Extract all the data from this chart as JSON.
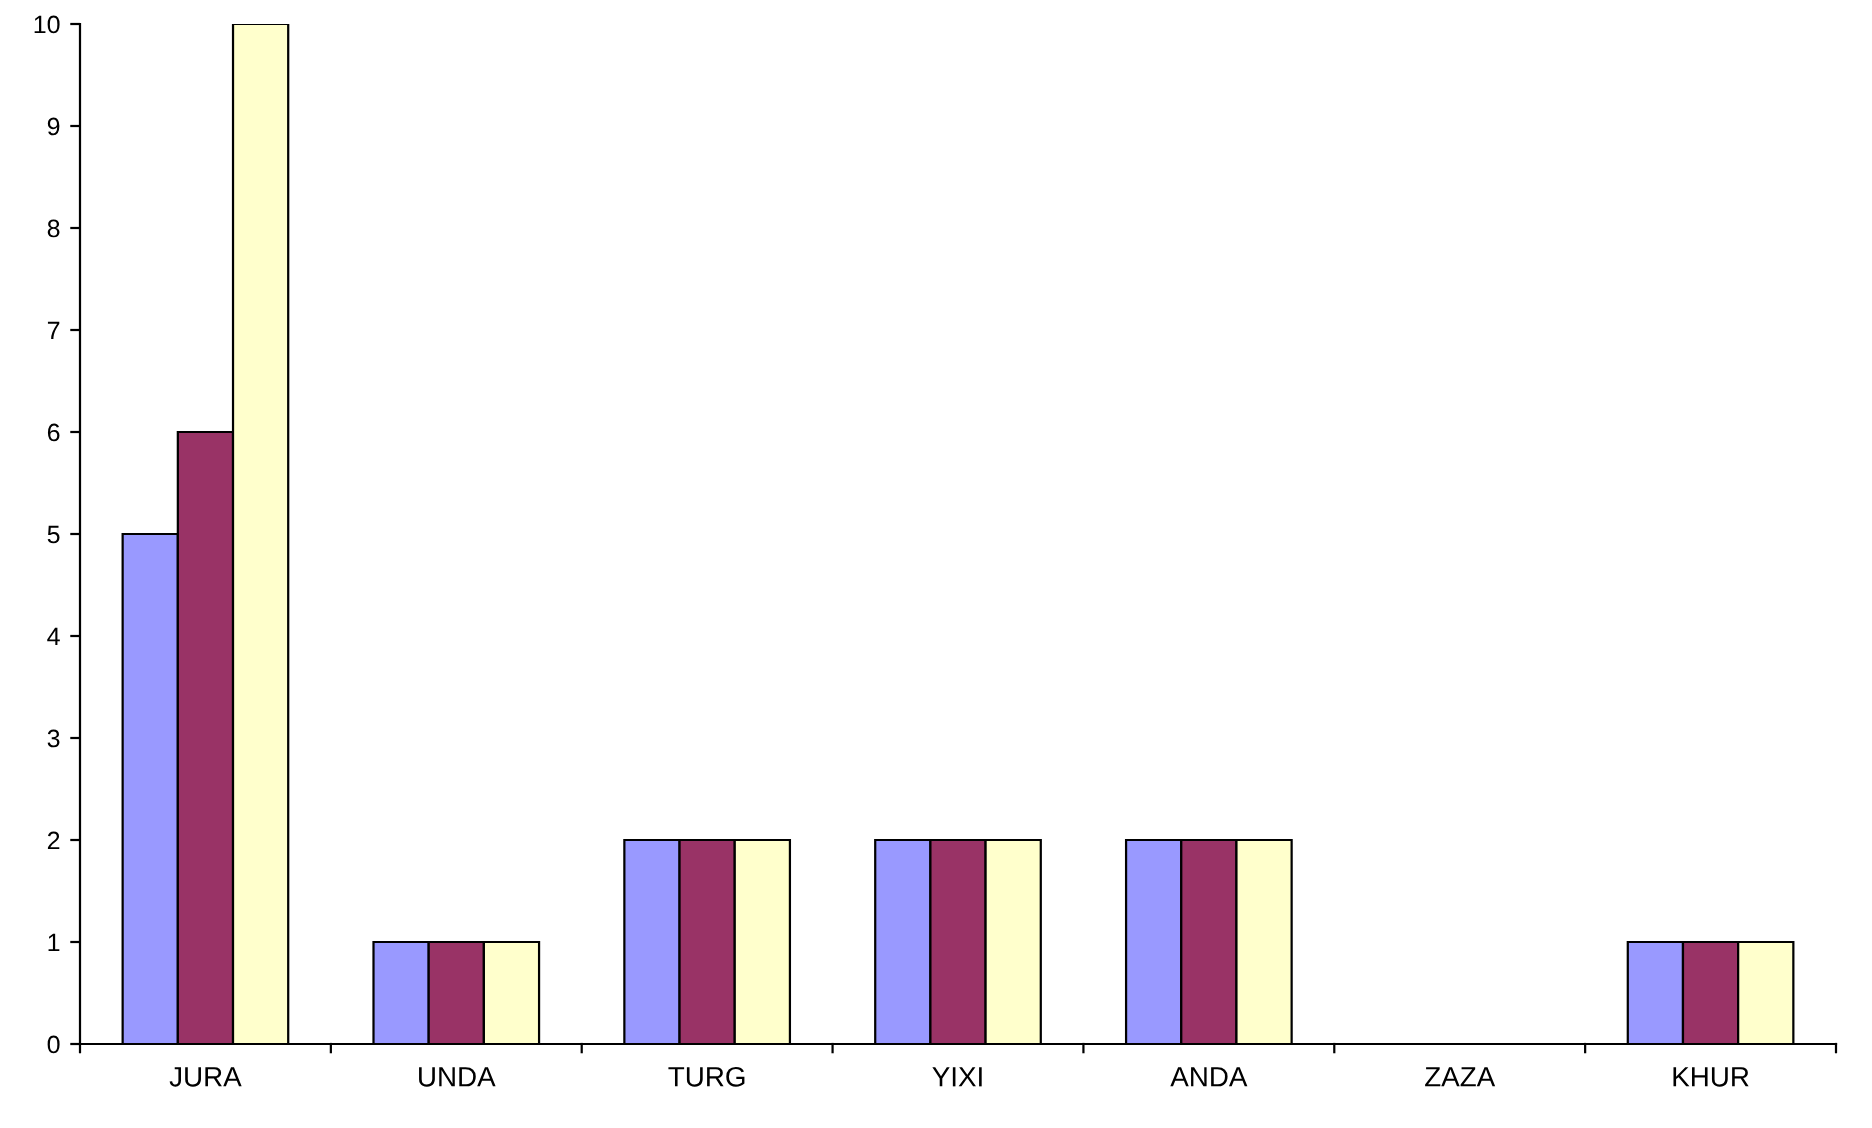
{
  "chart_data": {
    "type": "bar",
    "categories": [
      "JURA",
      "UNDA",
      "TURG",
      "YIXI",
      "ANDA",
      "ZAZA",
      "KHUR"
    ],
    "series": [
      {
        "color": "#9999ff",
        "values": [
          5,
          1,
          2,
          2,
          2,
          0,
          1
        ]
      },
      {
        "color": "#993366",
        "values": [
          6,
          1,
          2,
          2,
          2,
          0,
          1
        ]
      },
      {
        "color": "#ffffcc",
        "values": [
          10,
          1,
          2,
          2,
          2,
          0,
          1
        ]
      }
    ],
    "ylim": [
      0,
      10
    ],
    "yticks": [
      0,
      1,
      2,
      3,
      4,
      5,
      6,
      7,
      8,
      9,
      10
    ],
    "grid": false,
    "legend": false
  }
}
